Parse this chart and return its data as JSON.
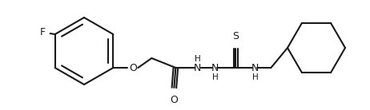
{
  "bg_color": "#ffffff",
  "line_color": "#1a1a1a",
  "line_width": 1.5,
  "font_size": 8.5,
  "figsize": [
    4.62,
    1.38
  ],
  "dpi": 100,
  "xlim": [
    0,
    4.62
  ],
  "ylim": [
    0,
    1.38
  ]
}
